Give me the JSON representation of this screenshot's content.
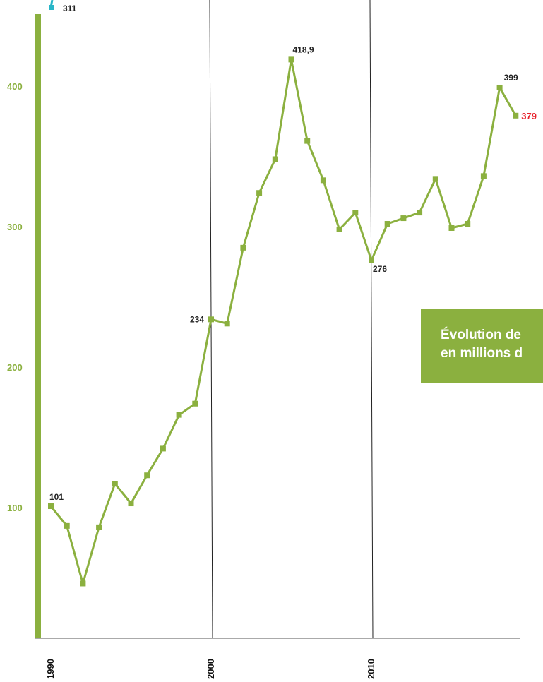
{
  "chart_data": {
    "type": "line",
    "title_lines": [
      "Évolution de",
      "en millions d"
    ],
    "x": [
      1990,
      1991,
      1992,
      1993,
      1994,
      1995,
      1996,
      1997,
      1998,
      1999,
      2000,
      2001,
      2002,
      2003,
      2004,
      2005,
      2006,
      2007,
      2008,
      2009,
      2010,
      2011,
      2012,
      2013,
      2014,
      2015,
      2016,
      2017,
      2018,
      2019
    ],
    "series": [
      {
        "values": [
          101,
          87,
          46,
          86,
          117,
          103,
          123,
          142,
          166,
          174,
          234,
          231,
          285,
          324,
          348,
          418.9,
          361,
          333,
          298,
          310,
          276,
          302,
          306,
          310,
          334,
          299,
          302,
          336,
          399,
          379
        ]
      }
    ],
    "x_tick_labels": [
      "1990",
      "2000",
      "2010"
    ],
    "x_ticks": [
      1990,
      2000,
      2010
    ],
    "y_tick_labels": [
      "100",
      "200",
      "300",
      "400"
    ],
    "y_ticks": [
      100,
      200,
      300,
      400
    ],
    "data_labels": [
      {
        "x": 1990,
        "y": 101,
        "text": "101"
      },
      {
        "x": 2000,
        "y": 234,
        "text": "234"
      },
      {
        "x": 2005,
        "y": 418.9,
        "text": "418,9"
      },
      {
        "x": 2010,
        "y": 276,
        "text": "276"
      },
      {
        "x": 2018,
        "y": 399,
        "text": "399"
      },
      {
        "x": 2019,
        "y": 379,
        "text": "379"
      }
    ],
    "corner_label": "311",
    "grid": false,
    "vertical_reference_lines": [
      2000,
      2010
    ],
    "colors": {
      "series": "#8bb03f",
      "axis_bar": "#8bb03f",
      "last_label": "#e8212b",
      "legend_box": "#8bb03f",
      "corner_marker": "#29b6c8"
    }
  }
}
